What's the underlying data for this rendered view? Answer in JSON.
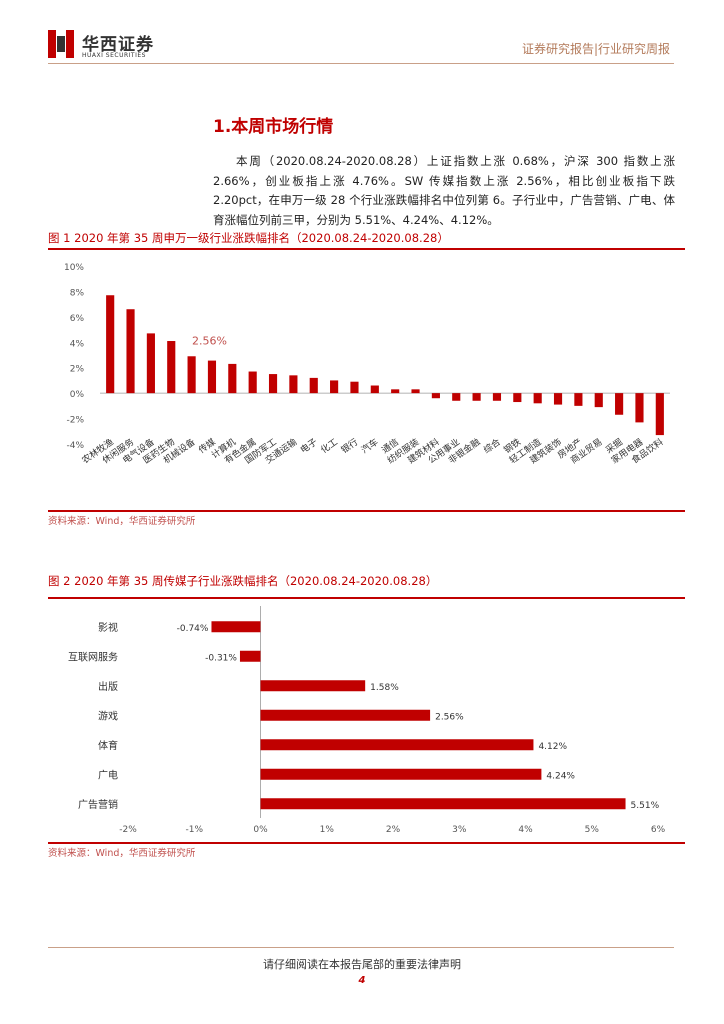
{
  "header": {
    "logo_cn": "华西证券",
    "logo_en": "HUAXI SECURITIES",
    "right_text": "证券研究报告|行业研究周报",
    "brand_color": "#c00000"
  },
  "section": {
    "title": "1.本周市场行情",
    "paragraph": "本周（2020.08.24-2020.08.28）上证指数上涨 0.68%，沪深 300 指数上涨 2.66%，创业板指上涨 4.76%。SW 传媒指数上涨 2.56%，相比创业板指下跌 2.20pct，在申万一级 28 个行业涨跌幅排名中位列第 6。子行业中，广告营销、广电、体育涨幅位列前三甲，分别为 5.51%、4.24%、4.12%。"
  },
  "figure1": {
    "title": "图 1 2020 年第 35 周申万一级行业涨跌幅排名（2020.08.24-2020.08.28）",
    "source": "资料来源：Wind，华西证券研究所"
  },
  "figure2": {
    "title": "图 2 2020 年第 35 周传媒子行业涨跌幅排名（2020.08.24-2020.08.28）",
    "source": "资料来源：Wind，华西证券研究所"
  },
  "footer": {
    "disclaimer": "请仔细阅读在本报告尾部的重要法律声明",
    "page": "4"
  },
  "chart_data": [
    {
      "type": "bar",
      "title": "2020 年第 35 周申万一级行业涨跌幅排名",
      "categories": [
        "农林牧渔",
        "休闲服务",
        "电气设备",
        "医药生物",
        "机械设备",
        "传媒",
        "计算机",
        "有色金属",
        "国防军工",
        "交通运输",
        "电子",
        "化工",
        "银行",
        "汽车",
        "通信",
        "纺织服装",
        "建筑材料",
        "公用事业",
        "非银金融",
        "综合",
        "钢铁",
        "轻工制造",
        "建筑装饰",
        "房地产",
        "商业贸易",
        "采掘",
        "家用电器",
        "食品饮料"
      ],
      "values": [
        7.7,
        6.6,
        4.7,
        4.1,
        2.9,
        2.56,
        2.3,
        1.7,
        1.5,
        1.4,
        1.2,
        1.0,
        0.9,
        0.6,
        0.3,
        0.3,
        -0.4,
        -0.6,
        -0.6,
        -0.6,
        -0.7,
        -0.8,
        -0.9,
        -1.0,
        -1.1,
        -1.7,
        -2.3,
        -3.3
      ],
      "highlight_label": "2.56%",
      "ytick_labels": [
        "10%",
        "8%",
        "6%",
        "4%",
        "2%",
        "0%",
        "-2%",
        "-4%"
      ],
      "ylim": [
        -4,
        10
      ],
      "bar_color": "#c00000"
    },
    {
      "type": "bar",
      "orientation": "horizontal",
      "title": "2020 年第 35 周传媒子行业涨跌幅排名",
      "categories": [
        "影视",
        "互联网服务",
        "出版",
        "游戏",
        "体育",
        "广电",
        "广告营销"
      ],
      "values": [
        -0.74,
        -0.31,
        1.58,
        2.56,
        4.12,
        4.24,
        5.51
      ],
      "value_labels": [
        "-0.74%",
        "-0.31%",
        "1.58%",
        "2.56%",
        "4.12%",
        "4.24%",
        "5.51%"
      ],
      "xtick_labels": [
        "-2%",
        "-1%",
        "0%",
        "1%",
        "2%",
        "3%",
        "4%",
        "5%",
        "6%"
      ],
      "xlim": [
        -2,
        6
      ],
      "bar_color": "#c00000"
    }
  ]
}
